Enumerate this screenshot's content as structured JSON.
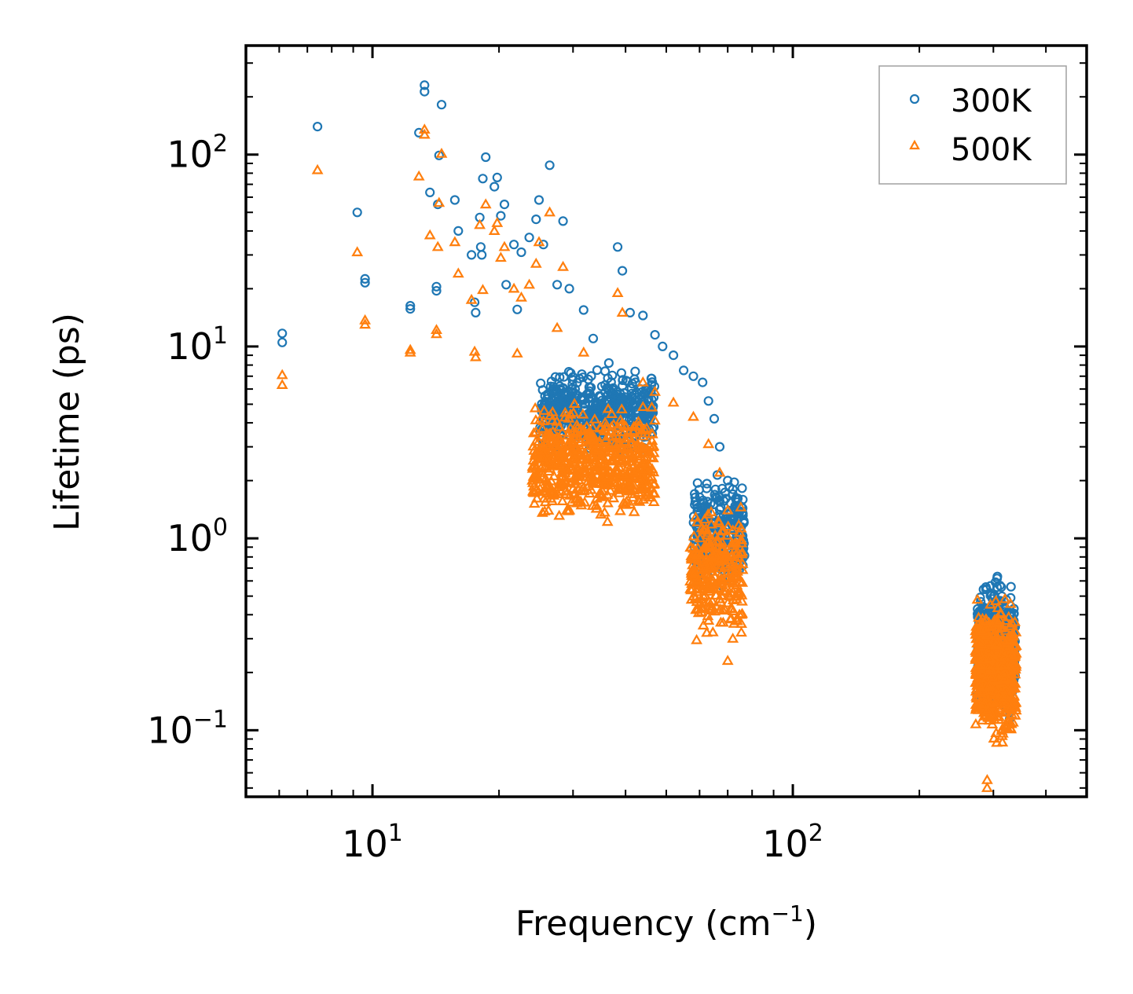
{
  "chart_data": {
    "type": "scatter",
    "title": "",
    "xlabel": "Frequency (cm",
    "xlabel_superscript": "−1",
    "xlabel_suffix": ")",
    "ylabel": "Lifetime (ps)",
    "xscale": "log",
    "yscale": "log",
    "xlim": [
      5,
      500
    ],
    "ylim": [
      0.045,
      370
    ],
    "grid": false,
    "legend_position": "top-right",
    "x_ticks": [
      {
        "value": 10,
        "base": "10",
        "exp": "1"
      },
      {
        "value": 100,
        "base": "10",
        "exp": "2"
      }
    ],
    "y_ticks": [
      {
        "value": 0.1,
        "base": "10",
        "exp": "−1"
      },
      {
        "value": 1,
        "base": "10",
        "exp": "0"
      },
      {
        "value": 10,
        "base": "10",
        "exp": "1"
      },
      {
        "value": 100,
        "base": "10",
        "exp": "2"
      }
    ],
    "series": [
      {
        "name": "300K",
        "marker": "circle",
        "color": "#1f77b4",
        "points": [
          [
            6.1,
            11.7
          ],
          [
            6.1,
            10.5
          ],
          [
            7.4,
            140
          ],
          [
            9.2,
            50
          ],
          [
            9.6,
            22.5
          ],
          [
            9.6,
            21.5
          ],
          [
            12.3,
            16.3
          ],
          [
            12.3,
            15.7
          ],
          [
            12.9,
            130
          ],
          [
            13.3,
            230
          ],
          [
            13.3,
            213
          ],
          [
            13.7,
            63.5
          ],
          [
            14.2,
            20.5
          ],
          [
            14.2,
            19.5
          ],
          [
            14.3,
            55
          ],
          [
            14.4,
            99
          ],
          [
            14.6,
            182
          ],
          [
            15.7,
            58
          ],
          [
            16.0,
            40
          ],
          [
            17.2,
            30
          ],
          [
            17.5,
            17
          ],
          [
            17.6,
            15
          ],
          [
            18.0,
            47
          ],
          [
            18.1,
            33
          ],
          [
            18.2,
            30
          ],
          [
            18.3,
            75
          ],
          [
            18.6,
            97
          ],
          [
            19.5,
            68
          ],
          [
            19.8,
            76
          ],
          [
            20.2,
            48
          ],
          [
            20.6,
            55
          ],
          [
            20.8,
            21
          ],
          [
            21.7,
            34
          ],
          [
            22.1,
            15.6
          ],
          [
            22.6,
            31
          ],
          [
            23.6,
            37
          ],
          [
            24.5,
            46
          ],
          [
            24.9,
            58
          ],
          [
            25.5,
            34
          ],
          [
            26.4,
            88
          ],
          [
            27.5,
            21
          ],
          [
            28.4,
            45
          ],
          [
            29.4,
            20
          ],
          [
            31.8,
            15.5
          ],
          [
            33.5,
            11
          ],
          [
            36.5,
            8.2
          ],
          [
            38.3,
            33
          ],
          [
            39.3,
            24.8
          ],
          [
            41.0,
            15
          ],
          [
            44.0,
            14.5
          ],
          [
            47.0,
            11.5
          ],
          [
            49.0,
            10
          ],
          [
            52.0,
            9
          ],
          [
            55.0,
            7.5
          ],
          [
            58.0,
            7
          ],
          [
            61.0,
            6.5
          ],
          [
            63.0,
            5.2
          ],
          [
            65.0,
            4.2
          ],
          [
            67.0,
            3
          ],
          [
            70.0,
            2
          ],
          [
            72.0,
            1.7
          ],
          [
            74.0,
            1.3
          ],
          [
            75.0,
            0.9
          ]
        ],
        "clusters": [
          {
            "x": [
              25,
              47
            ],
            "y": [
              2.5,
              8.5
            ],
            "count": 520
          },
          {
            "x": [
              58,
              77
            ],
            "y": [
              0.45,
              2.4
            ],
            "count": 260
          },
          {
            "x": [
              275,
              338
            ],
            "y": [
              0.1,
              0.72
            ],
            "count": 600
          }
        ]
      },
      {
        "name": "500K",
        "marker": "triangle",
        "color": "#ff7f0e",
        "points": [
          [
            6.1,
            7.1
          ],
          [
            6.1,
            6.3
          ],
          [
            7.4,
            83
          ],
          [
            9.2,
            31
          ],
          [
            9.6,
            13.7
          ],
          [
            9.6,
            13
          ],
          [
            12.3,
            9.6
          ],
          [
            12.3,
            9.3
          ],
          [
            12.9,
            77
          ],
          [
            13.3,
            135
          ],
          [
            13.3,
            127
          ],
          [
            13.7,
            38
          ],
          [
            14.2,
            12.2
          ],
          [
            14.2,
            11.6
          ],
          [
            14.3,
            33
          ],
          [
            14.4,
            56
          ],
          [
            14.6,
            101
          ],
          [
            15.7,
            35
          ],
          [
            16.0,
            24
          ],
          [
            17.2,
            17.5
          ],
          [
            17.5,
            9.4
          ],
          [
            17.6,
            8.8
          ],
          [
            18.0,
            43
          ],
          [
            18.3,
            19.7
          ],
          [
            18.6,
            55
          ],
          [
            19.5,
            40
          ],
          [
            19.8,
            44
          ],
          [
            20.2,
            29
          ],
          [
            20.6,
            33
          ],
          [
            21.7,
            20
          ],
          [
            22.1,
            9.2
          ],
          [
            22.6,
            18
          ],
          [
            23.6,
            21
          ],
          [
            24.5,
            27
          ],
          [
            24.9,
            35
          ],
          [
            26.4,
            50
          ],
          [
            27.5,
            12.5
          ],
          [
            28.4,
            26
          ],
          [
            31.8,
            9.3
          ],
          [
            38.3,
            19
          ],
          [
            39.3,
            15
          ],
          [
            44.0,
            6.5
          ],
          [
            47.0,
            5.8
          ],
          [
            52.0,
            5.1
          ],
          [
            58.0,
            4.3
          ],
          [
            63.0,
            3.1
          ],
          [
            67.0,
            2.2
          ],
          [
            70.0,
            1.4
          ],
          [
            72.0,
            1.1
          ],
          [
            74.0,
            0.8
          ],
          [
            72.0,
            0.3
          ],
          [
            70.0,
            0.23
          ],
          [
            290.0,
            0.055
          ],
          [
            290.0,
            0.05
          ],
          [
            320.0,
            0.105
          ]
        ],
        "clusters": [
          {
            "x": [
              24,
              47
            ],
            "y": [
              1.1,
              5.6
            ],
            "count": 620
          },
          {
            "x": [
              57,
              76
            ],
            "y": [
              0.24,
              1.8
            ],
            "count": 280
          },
          {
            "x": [
              272,
              340
            ],
            "y": [
              0.075,
              0.55
            ],
            "count": 650
          }
        ]
      }
    ]
  }
}
